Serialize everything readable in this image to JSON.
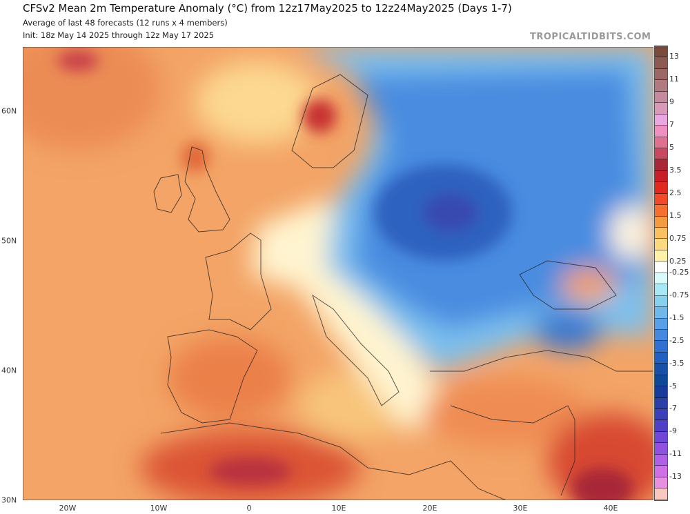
{
  "header": {
    "title": "CFSv2 Mean 2m Temperature Anomaly (°C) from 12z17May2025 to 12z24May2025 (Days 1-7)",
    "subtitle1": "Average of last 48 forecasts (12 runs x 4 members)",
    "subtitle2": "Init: 18z May 14 2025 through 12z May 17 2025",
    "watermark": "TROPICALTIDBITS.COM"
  },
  "axes": {
    "x_ticks": [
      "20W",
      "10W",
      "0",
      "10E",
      "20E",
      "30E",
      "40E"
    ],
    "y_ticks": [
      "60N",
      "50N",
      "40N",
      "30N"
    ]
  },
  "colorbar": {
    "labels": [
      "13",
      "11",
      "9",
      "7",
      "5",
      "3.5",
      "2.5",
      "1.5",
      "0.75",
      "0.25",
      "-0.25",
      "-0.75",
      "-1.5",
      "-2.5",
      "-3.5",
      "-5",
      "-7",
      "-9",
      "-11",
      "-13"
    ],
    "colors_warm": [
      "#7a4a3c",
      "#8c5a50",
      "#9c6866",
      "#b07a80",
      "#c48aa0",
      "#d89ab8",
      "#eaa8e0",
      "#f090c0",
      "#e07090",
      "#c84a60",
      "#a82838",
      "#c81e28",
      "#e02a20",
      "#f04a28",
      "#f47030",
      "#f49a40",
      "#f8c060",
      "#fcd880",
      "#fff2a8",
      "#ffffff"
    ],
    "colors_cold": [
      "#d8fafa",
      "#a8e8f4",
      "#88d0f0",
      "#70b8ec",
      "#5aa0e8",
      "#4488e0",
      "#3070d0",
      "#2060c0",
      "#1850a8",
      "#104898",
      "#183c9c",
      "#2a40a8",
      "#3c40b8",
      "#5040c8",
      "#7048d8",
      "#9050e0",
      "#b060e8",
      "#d070e8",
      "#e890e0",
      "#f8c8c0"
    ]
  }
}
